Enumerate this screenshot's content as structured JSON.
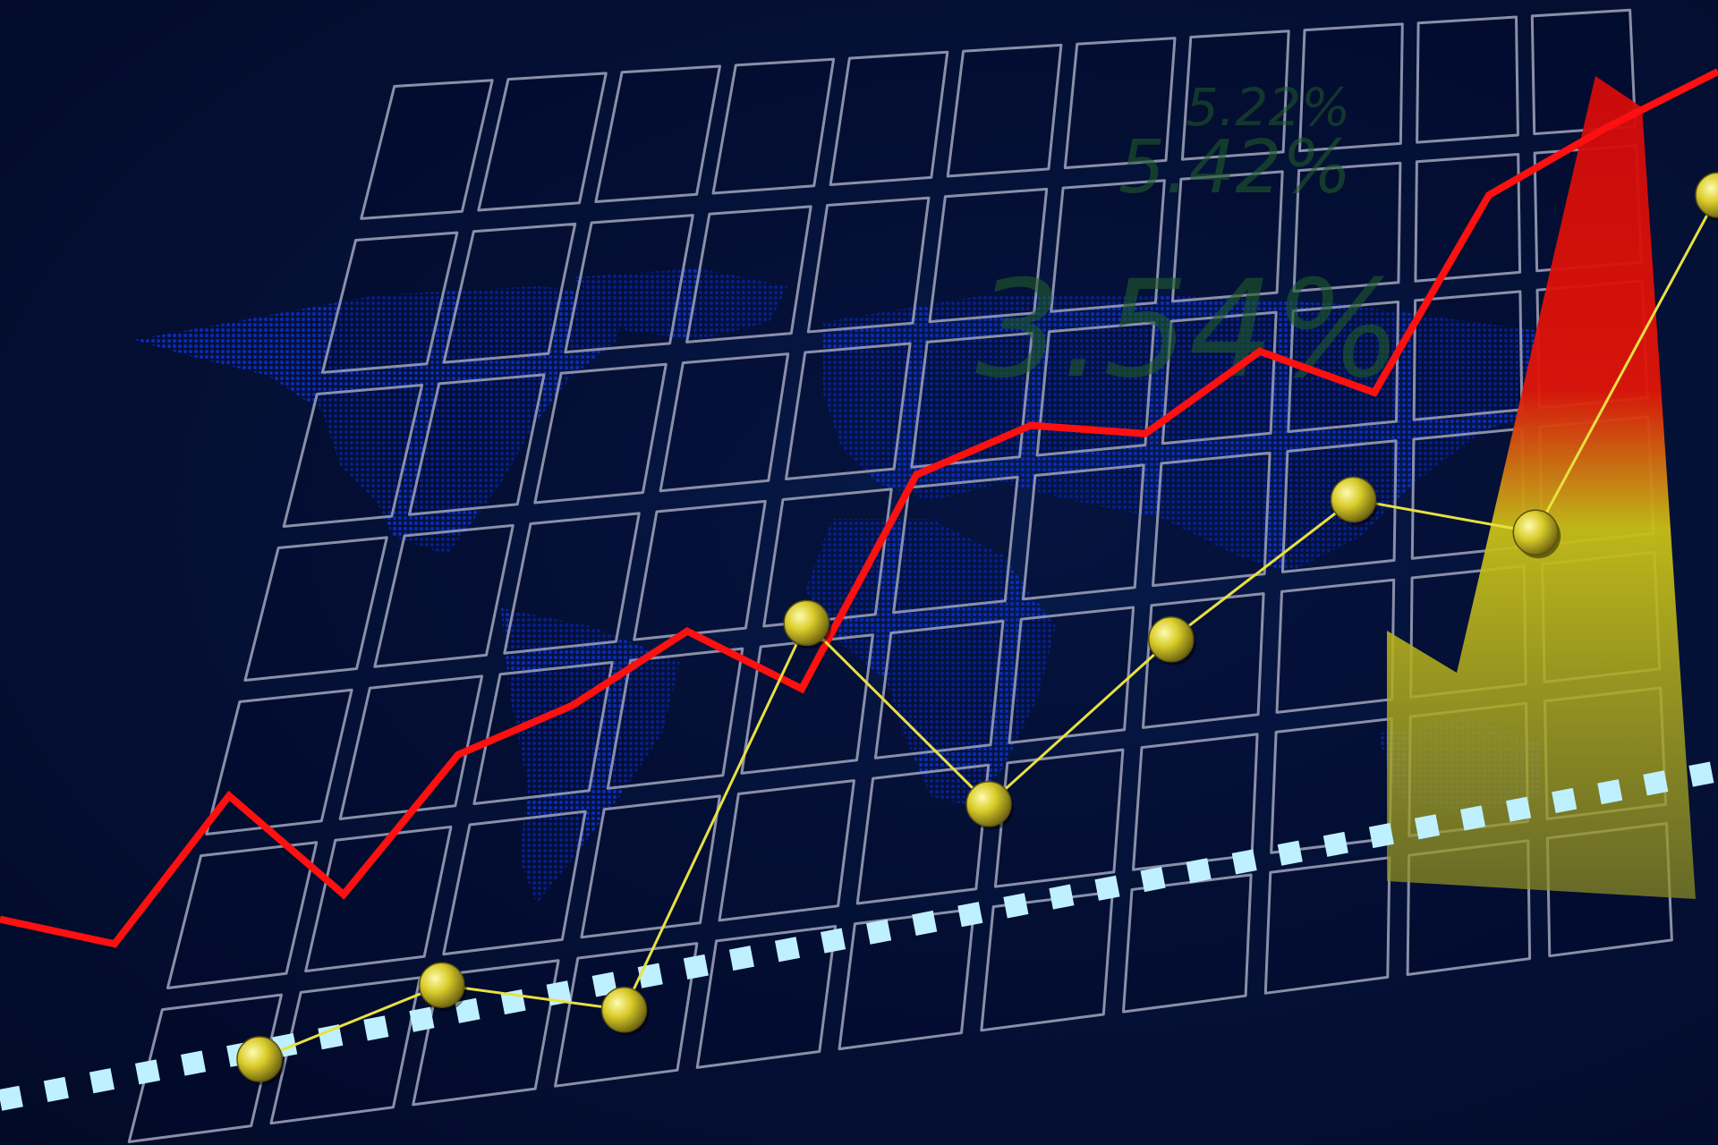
{
  "chart_data": {
    "type": "line",
    "title": "",
    "xlabel": "",
    "ylabel": "",
    "annotations": [
      "5.22%",
      "5.42%",
      "3.54%"
    ],
    "series": [
      {
        "color": "#ff1010",
        "values": [
          0.22,
          0.19,
          0.37,
          0.25,
          0.42,
          0.48,
          0.57,
          0.5,
          0.76,
          0.82,
          0.81,
          0.91,
          0.86,
          1.1,
          1.18,
          1.25
        ]
      },
      {
        "color": "#e8e040",
        "marker": "sphere",
        "values": [
          0.05,
          0.14,
          0.11,
          0.58,
          0.36,
          0.56,
          0.73,
          0.69,
          1.1
        ]
      },
      {
        "color": "#bff0ff",
        "style": "dotted",
        "values": [
          0.0,
          0.4
        ]
      }
    ],
    "colors": {
      "background": "#020c2e",
      "grid": "#8a8fa8",
      "map": "#0a2ec0",
      "arrow_top": "#d40a0a",
      "arrow_bottom": "#c8c41a"
    }
  }
}
